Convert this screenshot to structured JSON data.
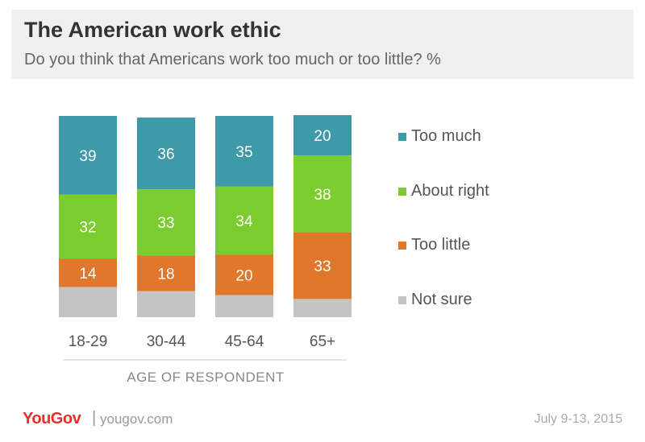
{
  "header": {
    "title": "The American work ethic",
    "subtitle": "Do you think that Americans work too much or too little? %"
  },
  "footer": {
    "brand": "YouGov",
    "separator": "|",
    "site": "yougov.com",
    "date": "July 9-13, 2015"
  },
  "colors": {
    "too_much": "#3e9aa8",
    "about_right": "#7bcc2f",
    "too_little": "#e0772b",
    "not_sure": "#c4c4c4"
  },
  "chart_data": {
    "type": "bar",
    "stacked": true,
    "categories": [
      "18-29",
      "30-44",
      "45-64",
      "65+"
    ],
    "xlabel": "AGE OF RESPONDENT",
    "series": [
      {
        "name": "Too much",
        "values": [
          39,
          36,
          35,
          20
        ]
      },
      {
        "name": "About right",
        "values": [
          32,
          33,
          34,
          38
        ]
      },
      {
        "name": "Too little",
        "values": [
          14,
          18,
          20,
          33
        ]
      },
      {
        "name": "Not sure",
        "values": [
          15,
          13,
          11,
          9
        ]
      }
    ],
    "shown_labels": [
      "Too much",
      "About right",
      "Too little"
    ],
    "legend": "right"
  }
}
